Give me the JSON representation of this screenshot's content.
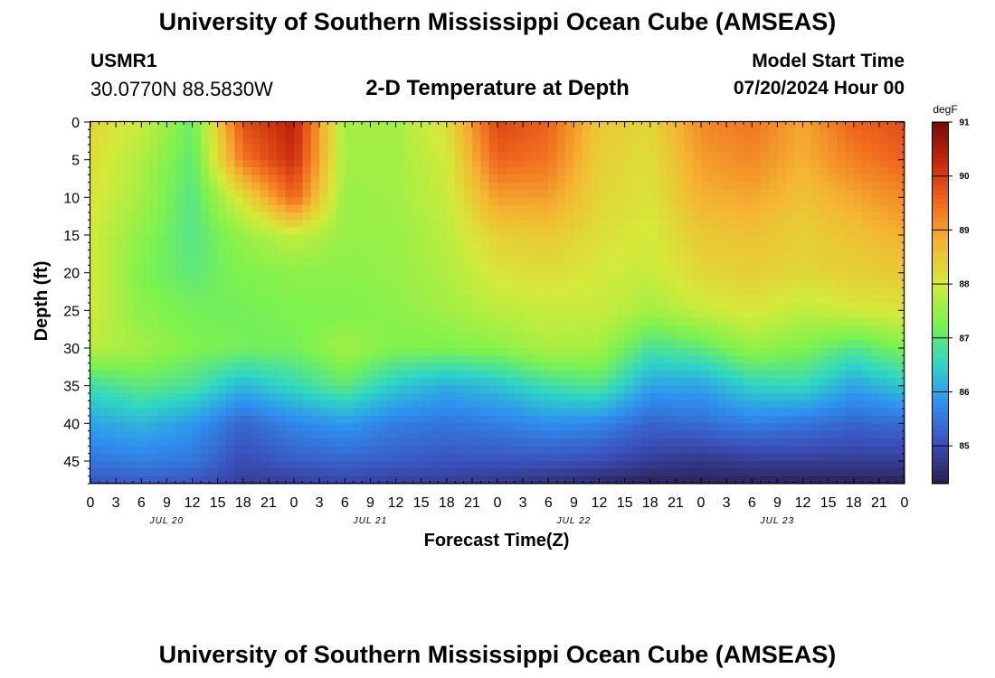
{
  "header": {
    "title": "University of Southern Mississippi Ocean Cube (AMSEAS)",
    "station": "USMR1",
    "coordinates": "30.0770N  88.5830W",
    "subtitle": "2-D Temperature at Depth",
    "model_start_label": "Model Start Time",
    "model_start_value": "07/20/2024 Hour 00"
  },
  "footer": {
    "title": "University of Southern Mississippi Ocean Cube (AMSEAS)"
  },
  "chart_data": {
    "type": "heatmap",
    "title": "2-D Temperature at Depth",
    "xlabel": "Forecast Time(Z)",
    "ylabel": "Depth (ft)",
    "colorbar_label": "degF",
    "x_ticks": [
      "0",
      "3",
      "6",
      "9",
      "12",
      "15",
      "18",
      "21",
      "0",
      "3",
      "6",
      "9",
      "12",
      "15",
      "18",
      "21",
      "0",
      "3",
      "6",
      "9",
      "12",
      "15",
      "18",
      "21",
      "0",
      "3",
      "6",
      "9",
      "12",
      "15",
      "18",
      "21",
      "0"
    ],
    "date_labels": [
      {
        "label": "JUL 20",
        "hour": 9
      },
      {
        "label": "JUL 21",
        "hour": 33
      },
      {
        "label": "JUL 22",
        "hour": 57
      },
      {
        "label": "JUL 23",
        "hour": 81
      }
    ],
    "xlim": [
      0,
      96
    ],
    "y_ticks": [
      0,
      5,
      10,
      15,
      20,
      25,
      30,
      35,
      40,
      45
    ],
    "ylim": [
      0,
      48
    ],
    "colorbar_ticks": [
      85,
      86,
      87,
      88,
      89,
      90,
      91
    ],
    "color_range": [
      84.3,
      91
    ],
    "colormap": [
      "#2a1c4a",
      "#3b4fb8",
      "#2f8ff0",
      "#2fd6c4",
      "#7df24e",
      "#d5ea3a",
      "#f5b532",
      "#f06a1e",
      "#c8280c",
      "#7a0a06"
    ],
    "depths_ft": [
      0,
      5,
      10,
      15,
      20,
      25,
      30,
      35,
      40,
      45,
      48
    ],
    "hours": [
      0,
      6,
      12,
      18,
      24,
      30,
      36,
      42,
      48,
      54,
      60,
      66,
      72,
      78,
      84,
      90,
      96
    ],
    "temperatures_degF": [
      [
        88.3,
        87.9,
        87.1,
        89.8,
        90.4,
        87.6,
        87.6,
        88.2,
        89.9,
        89.6,
        88.5,
        88.3,
        89.2,
        89.4,
        88.9,
        89.6,
        89.8
      ],
      [
        88.2,
        87.7,
        87.0,
        89.4,
        90.2,
        87.6,
        87.6,
        88.0,
        89.6,
        89.4,
        88.4,
        88.2,
        89.0,
        89.2,
        88.8,
        89.3,
        89.6
      ],
      [
        88.1,
        87.6,
        86.9,
        88.2,
        89.6,
        87.5,
        87.6,
        87.9,
        89.0,
        89.0,
        88.3,
        88.1,
        88.8,
        88.9,
        88.6,
        88.9,
        89.2
      ],
      [
        88.0,
        87.4,
        86.9,
        87.5,
        87.9,
        87.5,
        87.5,
        87.8,
        88.4,
        88.5,
        88.2,
        88.0,
        88.5,
        88.6,
        88.4,
        88.6,
        88.8
      ],
      [
        88.0,
        87.3,
        87.0,
        87.3,
        87.4,
        87.4,
        87.5,
        87.7,
        88.1,
        88.2,
        88.0,
        87.9,
        88.3,
        88.4,
        88.3,
        88.4,
        88.5
      ],
      [
        88.0,
        87.4,
        87.2,
        87.2,
        87.3,
        87.3,
        87.4,
        87.6,
        87.8,
        87.9,
        87.9,
        87.6,
        87.9,
        88.1,
        87.8,
        88.0,
        88.1
      ],
      [
        87.8,
        87.6,
        87.3,
        87.2,
        87.2,
        87.6,
        87.3,
        87.3,
        87.4,
        87.7,
        87.6,
        86.8,
        87.0,
        87.5,
        87.3,
        86.9,
        87.3
      ],
      [
        86.7,
        87.0,
        86.8,
        86.2,
        86.6,
        87.0,
        86.4,
        86.1,
        86.3,
        86.7,
        86.9,
        86.0,
        86.0,
        86.5,
        86.6,
        86.0,
        86.4
      ],
      [
        86.0,
        86.2,
        85.9,
        85.3,
        85.7,
        85.9,
        85.6,
        85.5,
        85.6,
        85.8,
        85.7,
        85.3,
        85.4,
        85.6,
        85.5,
        85.3,
        85.4
      ],
      [
        85.5,
        85.6,
        85.5,
        85.0,
        85.2,
        85.3,
        85.2,
        85.1,
        85.1,
        85.1,
        85.0,
        84.8,
        84.7,
        84.8,
        84.8,
        84.8,
        84.8
      ],
      [
        85.1,
        85.2,
        85.1,
        84.8,
        84.8,
        84.9,
        84.8,
        84.8,
        84.7,
        84.6,
        84.5,
        84.4,
        84.4,
        84.4,
        84.4,
        84.4,
        84.4
      ]
    ]
  }
}
